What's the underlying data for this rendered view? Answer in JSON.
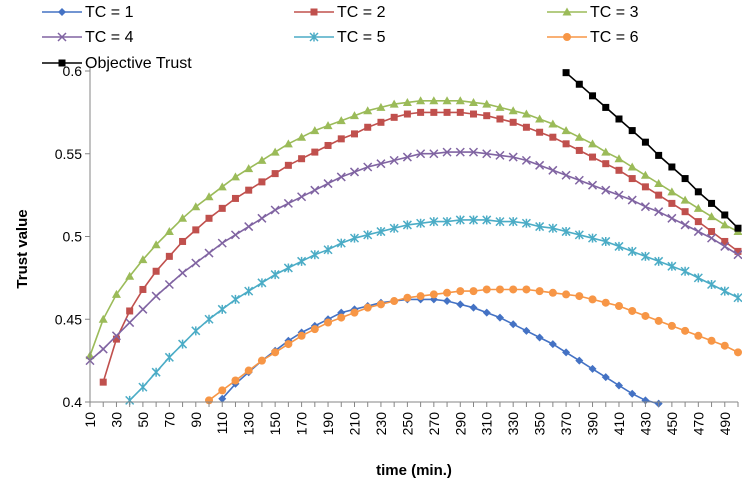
{
  "chart_data": {
    "type": "line",
    "xlabel": "time (min.)",
    "ylabel": "Trust value",
    "x_ticks": [
      "10",
      "30",
      "50",
      "70",
      "90",
      "110",
      "130",
      "150",
      "170",
      "190",
      "210",
      "230",
      "250",
      "270",
      "290",
      "310",
      "330",
      "350",
      "370",
      "390",
      "410",
      "430",
      "450",
      "470",
      "490"
    ],
    "y_ticks": [
      "0.4",
      "0.45",
      "0.5",
      "0.55",
      "0.6"
    ],
    "ylim": [
      0.4,
      0.6
    ],
    "xlim": [
      10,
      500
    ],
    "grid": false,
    "legend_position": "top",
    "series": [
      {
        "name": "TC = 1",
        "color": "#4472C4",
        "marker": "diamond",
        "x": [
          110,
          120,
          130,
          140,
          150,
          160,
          170,
          180,
          190,
          200,
          210,
          220,
          230,
          240,
          250,
          260,
          270,
          280,
          290,
          300,
          310,
          320,
          330,
          340,
          350,
          360,
          370,
          380,
          390,
          400,
          410,
          420,
          430,
          440
        ],
        "y": [
          0.402,
          0.411,
          0.418,
          0.425,
          0.431,
          0.437,
          0.442,
          0.446,
          0.45,
          0.454,
          0.456,
          0.458,
          0.46,
          0.461,
          0.462,
          0.462,
          0.462,
          0.461,
          0.459,
          0.457,
          0.454,
          0.451,
          0.447,
          0.443,
          0.439,
          0.435,
          0.43,
          0.425,
          0.42,
          0.415,
          0.41,
          0.405,
          0.401,
          0.399
        ]
      },
      {
        "name": "TC = 2",
        "color": "#C0504D",
        "marker": "square",
        "x": [
          20,
          30,
          40,
          50,
          60,
          70,
          80,
          90,
          100,
          110,
          120,
          130,
          140,
          150,
          160,
          170,
          180,
          190,
          200,
          210,
          220,
          230,
          240,
          250,
          260,
          270,
          280,
          290,
          300,
          310,
          320,
          330,
          340,
          350,
          360,
          370,
          380,
          390,
          400,
          410,
          420,
          430,
          440,
          450,
          460,
          470,
          480,
          490,
          500
        ],
        "y": [
          0.412,
          0.438,
          0.455,
          0.468,
          0.479,
          0.488,
          0.497,
          0.504,
          0.511,
          0.517,
          0.523,
          0.528,
          0.533,
          0.538,
          0.543,
          0.547,
          0.551,
          0.555,
          0.559,
          0.562,
          0.566,
          0.569,
          0.572,
          0.574,
          0.575,
          0.575,
          0.575,
          0.575,
          0.574,
          0.573,
          0.571,
          0.569,
          0.566,
          0.563,
          0.56,
          0.556,
          0.552,
          0.548,
          0.544,
          0.54,
          0.535,
          0.53,
          0.525,
          0.52,
          0.515,
          0.509,
          0.503,
          0.497,
          0.491
        ]
      },
      {
        "name": "TC = 3",
        "color": "#9BBB59",
        "marker": "triangle",
        "x": [
          10,
          20,
          30,
          40,
          50,
          60,
          70,
          80,
          90,
          100,
          110,
          120,
          130,
          140,
          150,
          160,
          170,
          180,
          190,
          200,
          210,
          220,
          230,
          240,
          250,
          260,
          270,
          280,
          290,
          300,
          310,
          320,
          330,
          340,
          350,
          360,
          370,
          380,
          390,
          400,
          410,
          420,
          430,
          440,
          450,
          460,
          470,
          480,
          490,
          500
        ],
        "y": [
          0.428,
          0.45,
          0.465,
          0.476,
          0.486,
          0.495,
          0.503,
          0.511,
          0.518,
          0.524,
          0.53,
          0.536,
          0.541,
          0.546,
          0.551,
          0.556,
          0.56,
          0.564,
          0.567,
          0.57,
          0.573,
          0.576,
          0.578,
          0.58,
          0.581,
          0.582,
          0.582,
          0.582,
          0.582,
          0.581,
          0.58,
          0.578,
          0.576,
          0.574,
          0.571,
          0.568,
          0.564,
          0.56,
          0.556,
          0.551,
          0.547,
          0.542,
          0.537,
          0.532,
          0.527,
          0.522,
          0.517,
          0.512,
          0.507,
          0.503
        ]
      },
      {
        "name": "TC = 4",
        "color": "#8064A2",
        "marker": "x",
        "x": [
          10,
          20,
          30,
          40,
          50,
          60,
          70,
          80,
          90,
          100,
          110,
          120,
          130,
          140,
          150,
          160,
          170,
          180,
          190,
          200,
          210,
          220,
          230,
          240,
          250,
          260,
          270,
          280,
          290,
          300,
          310,
          320,
          330,
          340,
          350,
          360,
          370,
          380,
          390,
          400,
          410,
          420,
          430,
          440,
          450,
          460,
          470,
          480,
          490,
          500
        ],
        "y": [
          0.425,
          0.432,
          0.44,
          0.448,
          0.456,
          0.464,
          0.471,
          0.478,
          0.484,
          0.49,
          0.496,
          0.501,
          0.506,
          0.511,
          0.516,
          0.52,
          0.524,
          0.528,
          0.532,
          0.536,
          0.539,
          0.542,
          0.544,
          0.546,
          0.548,
          0.55,
          0.55,
          0.551,
          0.551,
          0.551,
          0.55,
          0.549,
          0.548,
          0.546,
          0.543,
          0.54,
          0.537,
          0.534,
          0.531,
          0.528,
          0.525,
          0.522,
          0.518,
          0.515,
          0.511,
          0.507,
          0.503,
          0.499,
          0.494,
          0.489
        ]
      },
      {
        "name": "TC = 5",
        "color": "#4BACC6",
        "marker": "asterisk",
        "x": [
          40,
          50,
          60,
          70,
          80,
          90,
          100,
          110,
          120,
          130,
          140,
          150,
          160,
          170,
          180,
          190,
          200,
          210,
          220,
          230,
          240,
          250,
          260,
          270,
          280,
          290,
          300,
          310,
          320,
          330,
          340,
          350,
          360,
          370,
          380,
          390,
          400,
          410,
          420,
          430,
          440,
          450,
          460,
          470,
          480,
          490,
          500
        ],
        "y": [
          0.401,
          0.409,
          0.418,
          0.427,
          0.435,
          0.443,
          0.45,
          0.456,
          0.462,
          0.467,
          0.472,
          0.477,
          0.481,
          0.485,
          0.489,
          0.492,
          0.496,
          0.499,
          0.501,
          0.503,
          0.505,
          0.507,
          0.508,
          0.509,
          0.509,
          0.51,
          0.51,
          0.51,
          0.509,
          0.509,
          0.508,
          0.506,
          0.505,
          0.503,
          0.501,
          0.499,
          0.497,
          0.494,
          0.491,
          0.488,
          0.485,
          0.482,
          0.479,
          0.475,
          0.471,
          0.467,
          0.463
        ]
      },
      {
        "name": "TC = 6",
        "color": "#F79646",
        "marker": "circle",
        "x": [
          100,
          110,
          120,
          130,
          140,
          150,
          160,
          170,
          180,
          190,
          200,
          210,
          220,
          230,
          240,
          250,
          260,
          270,
          280,
          290,
          300,
          310,
          320,
          330,
          340,
          350,
          360,
          370,
          380,
          390,
          400,
          410,
          420,
          430,
          440,
          450,
          460,
          470,
          480,
          490,
          500
        ],
        "y": [
          0.401,
          0.407,
          0.413,
          0.419,
          0.425,
          0.43,
          0.435,
          0.44,
          0.444,
          0.448,
          0.451,
          0.454,
          0.457,
          0.459,
          0.461,
          0.463,
          0.464,
          0.465,
          0.466,
          0.467,
          0.467,
          0.468,
          0.468,
          0.468,
          0.468,
          0.467,
          0.466,
          0.465,
          0.464,
          0.462,
          0.46,
          0.458,
          0.455,
          0.452,
          0.449,
          0.446,
          0.443,
          0.44,
          0.437,
          0.434,
          0.43
        ]
      },
      {
        "name": "Objective Trust",
        "color": "#000000",
        "marker": "square",
        "x": [
          370,
          380,
          390,
          400,
          410,
          420,
          430,
          440,
          450,
          460,
          470,
          480,
          490,
          500
        ],
        "y": [
          0.599,
          0.592,
          0.585,
          0.578,
          0.571,
          0.564,
          0.557,
          0.549,
          0.542,
          0.535,
          0.527,
          0.52,
          0.513,
          0.505
        ]
      }
    ]
  }
}
